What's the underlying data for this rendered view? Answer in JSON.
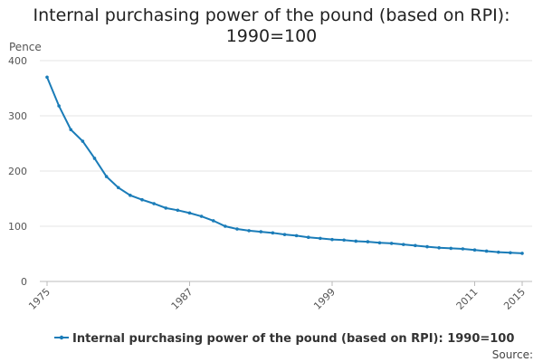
{
  "chart_data": {
    "type": "line",
    "title": "Internal purchasing power of the pound (based on RPI): 1990=100",
    "y_label": "Pence",
    "source": "Source:",
    "x": [
      1975,
      1976,
      1977,
      1978,
      1979,
      1980,
      1981,
      1982,
      1983,
      1984,
      1985,
      1986,
      1987,
      1988,
      1989,
      1990,
      1991,
      1992,
      1993,
      1994,
      1995,
      1996,
      1997,
      1998,
      1999,
      2000,
      2001,
      2002,
      2003,
      2004,
      2005,
      2006,
      2007,
      2008,
      2009,
      2010,
      2011,
      2012,
      2013,
      2014,
      2015
    ],
    "series": [
      {
        "name": "Internal purchasing power of the pound (based on RPI): 1990=100",
        "color": "#1a7cb8",
        "values": [
          370,
          318,
          275,
          254,
          223,
          190,
          170,
          156,
          148,
          141,
          133,
          129,
          124,
          118,
          110,
          100,
          95,
          92,
          90,
          88,
          85,
          83,
          80,
          78,
          76,
          75,
          73,
          72,
          70,
          69,
          67,
          65,
          63,
          61,
          60,
          59,
          57,
          55,
          53,
          52,
          51
        ]
      }
    ],
    "xlim": [
      1975,
      2015
    ],
    "xticks": [
      1975,
      1987,
      1999,
      2011,
      2015
    ],
    "ylim": [
      0,
      400
    ],
    "yticks": [
      0,
      100,
      200,
      300,
      400
    ],
    "grid": true
  }
}
